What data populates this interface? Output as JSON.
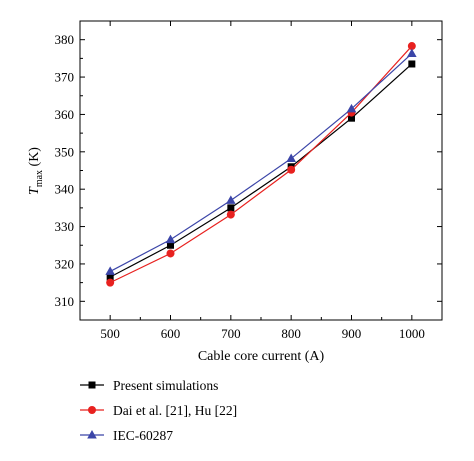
{
  "chart_data": {
    "type": "line",
    "title": "",
    "xlabel": "Cable core current (A)",
    "ylabel": {
      "main": "T",
      "subscript": "max",
      "unit": " (K)"
    },
    "x": [
      500,
      600,
      700,
      800,
      900,
      1000
    ],
    "xlim": [
      450,
      1050
    ],
    "ylim": [
      305,
      385
    ],
    "xticks": [
      500,
      600,
      700,
      800,
      900,
      1000
    ],
    "yticks": [
      310,
      320,
      330,
      340,
      350,
      360,
      370,
      380
    ],
    "grid": false,
    "legend_position": "below plot",
    "series": [
      {
        "name": "Present simulations",
        "color": "#000000",
        "marker": "square",
        "values": [
          316.5,
          325.0,
          335.0,
          346.0,
          359.0,
          373.5
        ]
      },
      {
        "name": "Dai et al. [21], Hu [22]",
        "color": "#e8211f",
        "marker": "circle",
        "values": [
          315.0,
          322.8,
          333.2,
          345.2,
          360.5,
          378.3
        ]
      },
      {
        "name": "IEC-60287",
        "color": "#3b45a8",
        "marker": "triangle",
        "values": [
          318.0,
          326.5,
          337.0,
          348.2,
          361.5,
          376.3
        ]
      }
    ]
  }
}
